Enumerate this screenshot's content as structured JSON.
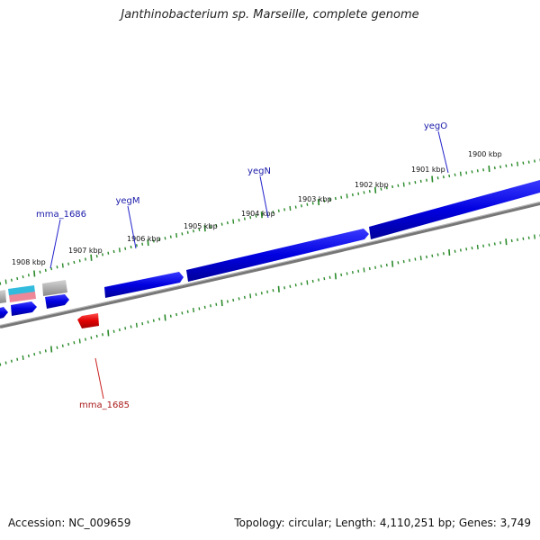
{
  "title": "Janthinobacterium sp. Marseille, complete genome",
  "footer": {
    "accession": "Accession: NC_009659",
    "summary": "Topology: circular; Length: 4,110,251 bp; Genes: 3,749"
  },
  "colors": {
    "backbone": "#808080",
    "forward_gene": "#0000e6",
    "reverse_gene": "#e60000",
    "tick": "#2a8a2a",
    "pseudo_gene": "#b0b0b0",
    "rna_cyan": "#33bbdd",
    "rna_pink": "#ee8899"
  },
  "ticks": {
    "labels": [
      "1908 kbp",
      "1907 kbp",
      "1906 kbp",
      "1905 kbp",
      "1904 kbp",
      "1903 kbp",
      "1902 kbp",
      "1901 kbp",
      "1900 kbp"
    ]
  },
  "genes": {
    "yegO": "yegO",
    "yegN": "yegN",
    "yegM": "yegM",
    "mma_1686": "mma_1686",
    "mma_1685": "mma_1685"
  }
}
